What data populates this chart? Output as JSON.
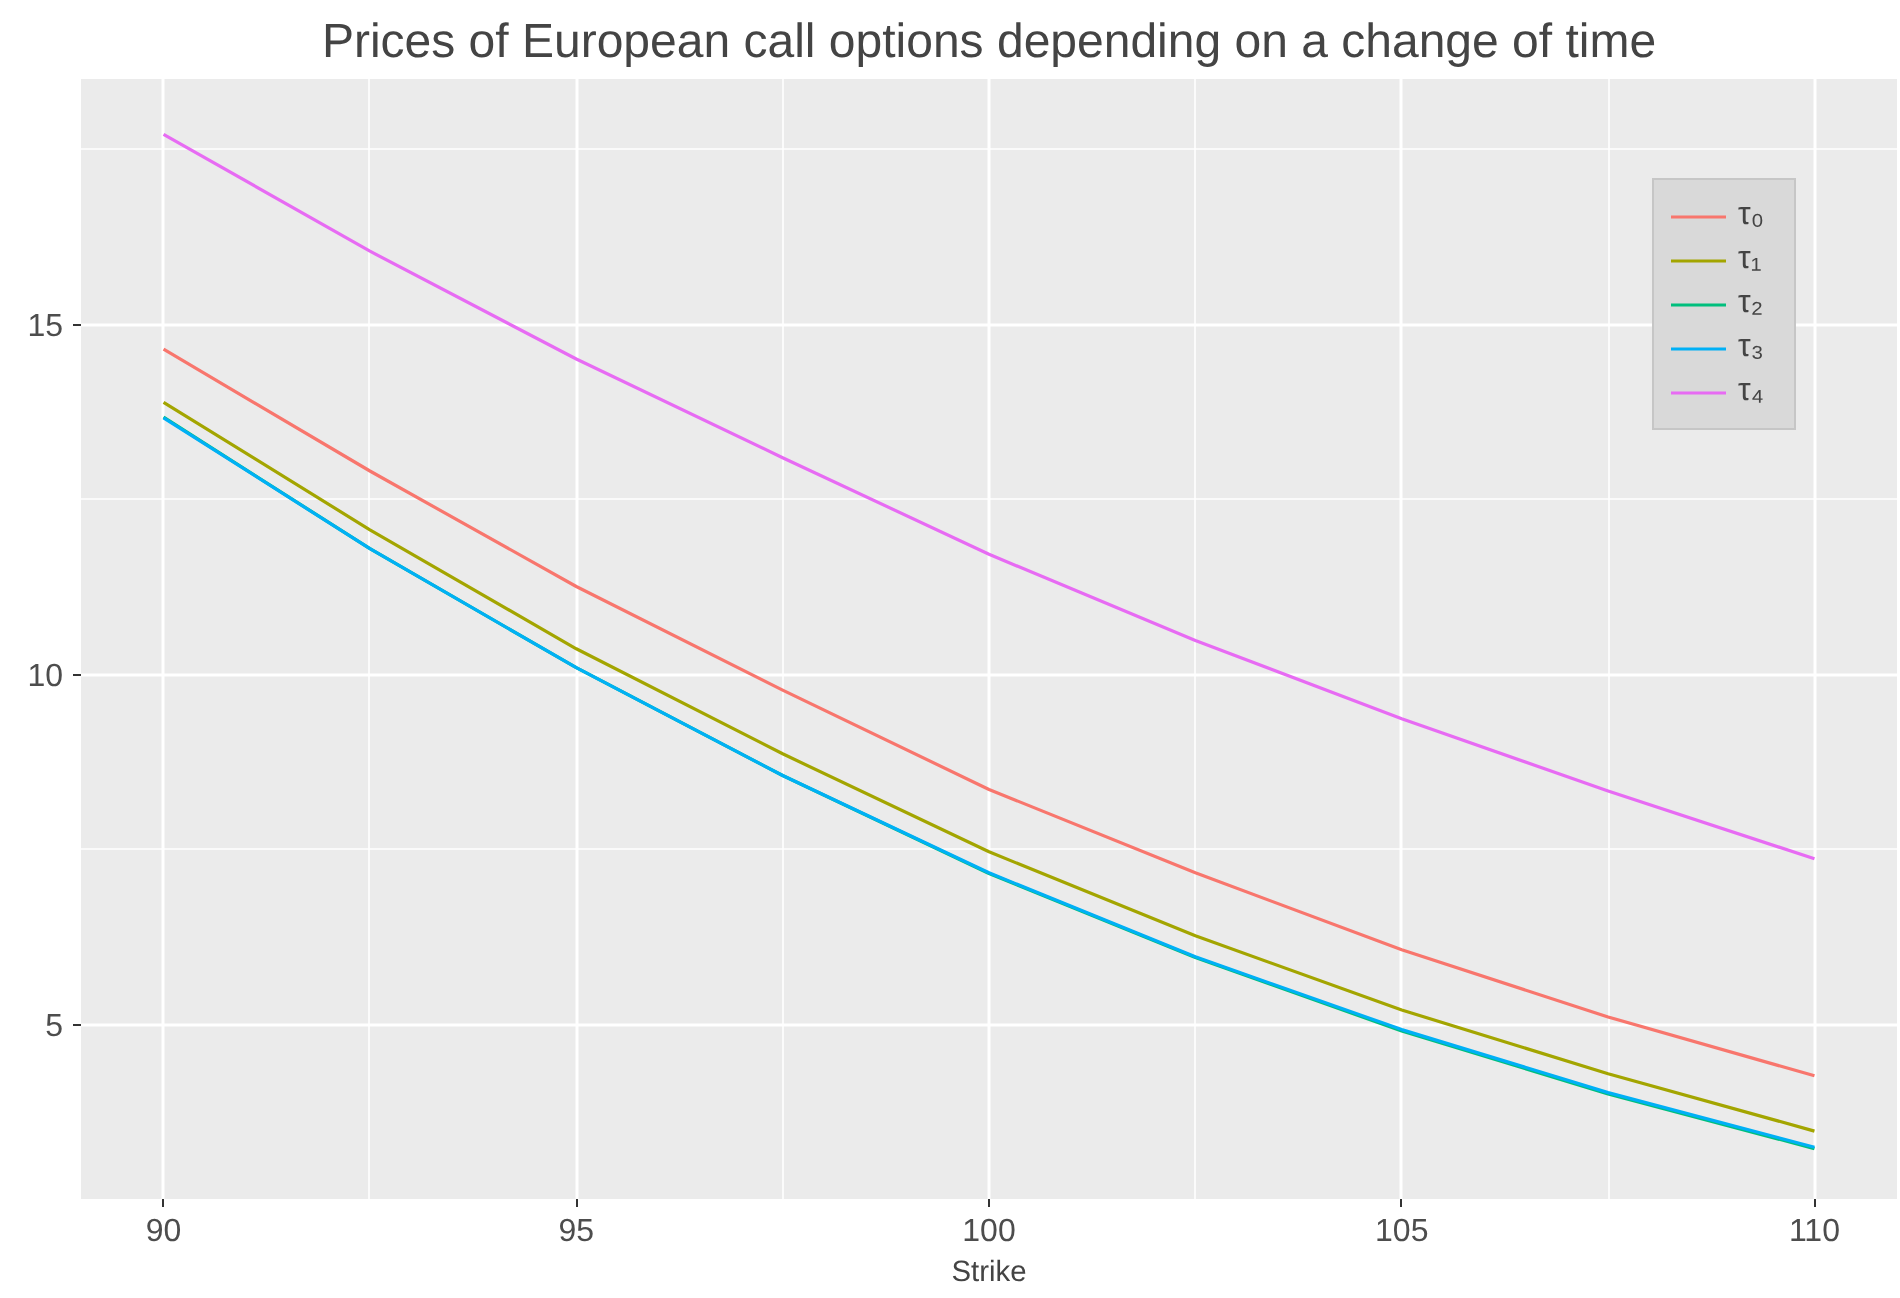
{
  "chart_data": {
    "type": "line",
    "title": "Prices of European call options depending on a change of time",
    "xlabel": "Strike",
    "x": [
      90,
      92.5,
      95,
      97.5,
      100,
      102.5,
      105,
      107.5,
      110
    ],
    "series": [
      {
        "name": "τ₀",
        "color": "#f8766d",
        "values": [
          14.64,
          12.9,
          11.25,
          9.77,
          8.35,
          7.16,
          6.06,
          5.1,
          4.26
        ]
      },
      {
        "name": "τ₁",
        "color": "#a3a500",
        "values": [
          13.88,
          12.06,
          10.36,
          8.86,
          7.46,
          6.26,
          5.2,
          4.29,
          3.47
        ]
      },
      {
        "name": "τ₂",
        "color": "#00bf7d",
        "values": [
          13.67,
          11.79,
          10.09,
          8.55,
          7.15,
          5.95,
          4.9,
          4.0,
          3.22
        ]
      },
      {
        "name": "τ₃",
        "color": "#00b0f6",
        "values": [
          13.66,
          11.79,
          10.09,
          8.55,
          7.16,
          5.96,
          4.92,
          4.02,
          3.24
        ]
      },
      {
        "name": "τ₄",
        "color": "#e76bf3",
        "values": [
          17.71,
          16.04,
          14.5,
          13.09,
          11.71,
          10.48,
          9.36,
          8.33,
          7.36
        ]
      }
    ],
    "xlim": [
      89,
      111
    ],
    "ylim": [
      2.5,
      18.5
    ],
    "xticks": [
      90,
      95,
      100,
      105,
      110
    ],
    "yticks": [
      5,
      10,
      15
    ],
    "grid": true,
    "legend": "top right",
    "line_style": "solid"
  }
}
